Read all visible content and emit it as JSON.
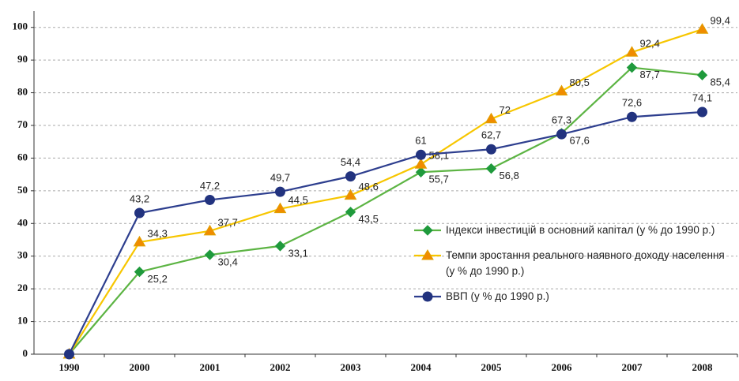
{
  "chart_data": {
    "type": "line",
    "categories": [
      "1990",
      "2000",
      "2001",
      "2002",
      "2003",
      "2004",
      "2005",
      "2006",
      "2007",
      "2008"
    ],
    "series": [
      {
        "name": "Індекси інвестицій в основний капітал (у % до 1990 р.)",
        "color": "#5cb443",
        "marker": "diamond",
        "marker_color": "#1f9a3c",
        "values": [
          0,
          25.2,
          30.4,
          33.1,
          43.5,
          55.7,
          56.8,
          67.6,
          87.7,
          85.4
        ],
        "value_labels": [
          null,
          "25,2",
          "30,4",
          "33,1",
          "43,5",
          "55,7",
          "56,8",
          "67,6",
          "87,7",
          "85,4"
        ]
      },
      {
        "name": "Темпи зростання реального наявного доходу населення (у % до 1990 р.)",
        "color": "#f7c600",
        "marker": "triangle",
        "marker_color": "#f08c00",
        "values": [
          0,
          34.3,
          37.7,
          44.5,
          48.6,
          58.1,
          72,
          80.5,
          92.4,
          99.4
        ],
        "value_labels": [
          null,
          "34,3",
          "37,7",
          "44,5",
          "48,6",
          "58,1",
          "72",
          "80,5",
          "92,4",
          "99,4"
        ]
      },
      {
        "name": "ВВП (у % до 1990 р.)",
        "color": "#2d3e8e",
        "marker": "circle",
        "marker_color": "#22337f",
        "values": [
          0,
          43.2,
          47.2,
          49.7,
          54.4,
          61,
          62.7,
          67.3,
          72.6,
          74.1
        ],
        "value_labels": [
          null,
          "43,2",
          "47,2",
          "49,7",
          "54,4",
          "61",
          "62,7",
          "67,3",
          "72,6",
          "74,1"
        ]
      }
    ],
    "ylim": [
      0,
      105
    ],
    "yticks": [
      0,
      10,
      20,
      30,
      40,
      50,
      60,
      70,
      80,
      90,
      100
    ],
    "grid": true
  }
}
